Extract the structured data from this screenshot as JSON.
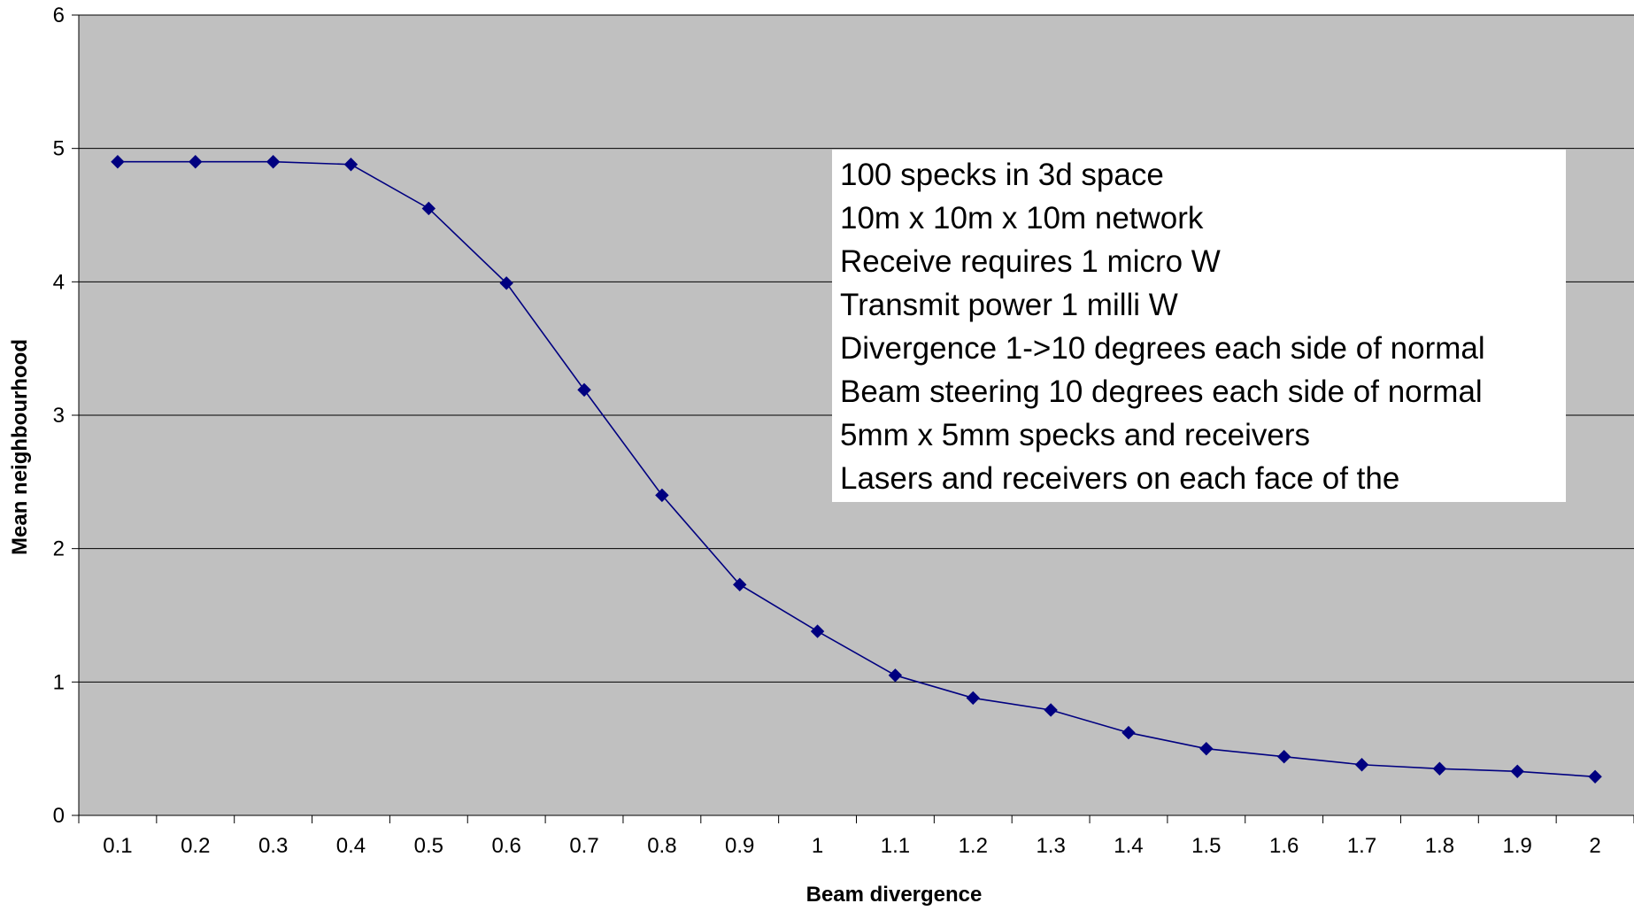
{
  "chart_data": {
    "type": "line",
    "title": "",
    "xlabel": "Beam divergence",
    "ylabel": "Mean neighbourhood",
    "categories": [
      "0.1",
      "0.2",
      "0.3",
      "0.4",
      "0.5",
      "0.6",
      "0.7",
      "0.8",
      "0.9",
      "1",
      "1.1",
      "1.2",
      "1.3",
      "1.4",
      "1.5",
      "1.6",
      "1.7",
      "1.8",
      "1.9",
      "2"
    ],
    "series": [
      {
        "values": [
          4.9,
          4.9,
          4.9,
          4.88,
          4.55,
          3.99,
          3.19,
          2.4,
          1.73,
          1.38,
          1.05,
          0.88,
          0.79,
          0.62,
          0.5,
          0.44,
          0.38,
          0.35,
          0.33,
          0.29
        ],
        "color": "#000080",
        "marker": "diamond"
      }
    ],
    "ylim": [
      0,
      6
    ],
    "yticks": [
      "0",
      "1",
      "2",
      "3",
      "4",
      "5",
      "6"
    ],
    "grid": true,
    "legend": "none",
    "plot_background": "#c0c0c0",
    "gridline_color": "#000000",
    "annotation": {
      "placement": "upper-right",
      "background": "#ffffff",
      "lines": [
        "100 specks in 3d space",
        "10m x 10m x 10m network",
        "Receive requires 1 micro W",
        "Transmit power 1 milli W",
        "Divergence 1->10 degrees each side of normal",
        "Beam steering 10 degrees each side of normal",
        "5mm x 5mm specks and receivers",
        "Lasers and receivers on each face of the"
      ]
    }
  }
}
